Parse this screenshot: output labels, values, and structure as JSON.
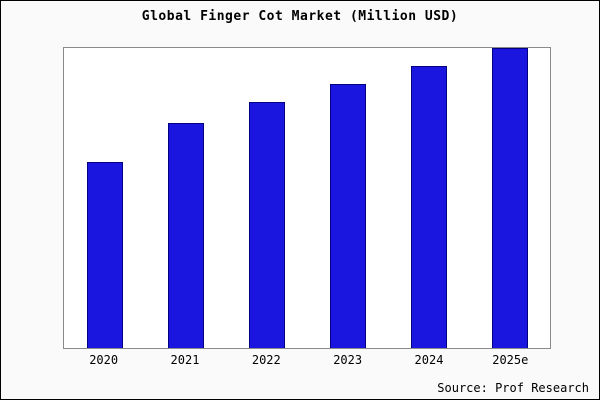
{
  "chart_data": {
    "type": "bar",
    "title": "Global Finger Cot Market (Million USD)",
    "categories": [
      "2020",
      "2021",
      "2022",
      "2023",
      "2024",
      "2025e"
    ],
    "values": [
      62,
      75,
      82,
      88,
      94,
      100
    ],
    "ylim": [
      0,
      100
    ],
    "xlabel": "",
    "ylabel": "",
    "grid": false,
    "legend": false,
    "bar_color": "#1a16e0",
    "bar_border_color": "#000080"
  },
  "source_label": "Source: Prof Research"
}
